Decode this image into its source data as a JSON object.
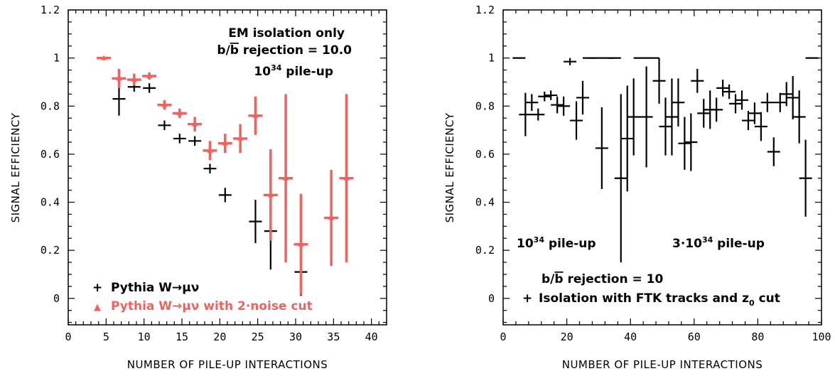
{
  "chart_data": [
    {
      "type": "scatter",
      "xlabel": "NUMBER OF PILE-UP INTERACTIONS",
      "ylabel": "SIGNAL EFFICIENCY",
      "xlim": [
        0,
        42
      ],
      "ylim": [
        -0.11,
        1.2
      ],
      "xticks": [
        "0",
        "5",
        "10",
        "15",
        "20",
        "25",
        "30",
        "35",
        "40"
      ],
      "yticks": [
        "0",
        "0.2",
        "0.4",
        "0.6",
        "0.8",
        "1",
        "1.2"
      ],
      "annotations": {
        "line1": "EM isolation only",
        "line2_prefix": "b/",
        "line2_bar": "b",
        "line2_suffix": " rejection = 10.0",
        "line3_base": "10",
        "line3_sup": "34",
        "line3_suffix": " pile-up"
      },
      "legend": {
        "placement": "bottom-left",
        "entries": [
          {
            "marker": "+",
            "label": "Pythia W→μν",
            "color": "#000000"
          },
          {
            "marker": "▲",
            "label": "Pythia W→μν with 2·noise cut",
            "color": "#f0625f"
          }
        ]
      },
      "series": [
        {
          "name": "Pythia W→μν",
          "color": "#000000",
          "points": [
            {
              "x": 6.7,
              "y": 0.83,
              "err": 0.07
            },
            {
              "x": 8.7,
              "y": 0.88,
              "err": 0.02
            },
            {
              "x": 10.7,
              "y": 0.875,
              "err": 0.02
            },
            {
              "x": 12.7,
              "y": 0.72,
              "err": 0.02
            },
            {
              "x": 14.7,
              "y": 0.665,
              "err": 0.02
            },
            {
              "x": 16.7,
              "y": 0.655,
              "err": 0.02
            },
            {
              "x": 18.7,
              "y": 0.54,
              "err": 0.02
            },
            {
              "x": 20.7,
              "y": 0.43,
              "err": 0.03
            },
            {
              "x": 24.7,
              "y": 0.32,
              "err": 0.09
            },
            {
              "x": 26.7,
              "y": 0.28,
              "err": 0.16
            },
            {
              "x": 30.7,
              "y": 0.11,
              "err": 0.1
            }
          ]
        },
        {
          "name": "Pythia W→μν with 2·noise cut",
          "color": "#f0625f",
          "points": [
            {
              "x": 4.7,
              "y": 1.0,
              "err": 0.005
            },
            {
              "x": 6.7,
              "y": 0.915,
              "err": 0.04
            },
            {
              "x": 8.7,
              "y": 0.91,
              "err": 0.025
            },
            {
              "x": 10.7,
              "y": 0.925,
              "err": 0.015
            },
            {
              "x": 12.7,
              "y": 0.805,
              "err": 0.02
            },
            {
              "x": 14.7,
              "y": 0.77,
              "err": 0.02
            },
            {
              "x": 16.7,
              "y": 0.725,
              "err": 0.03
            },
            {
              "x": 18.7,
              "y": 0.615,
              "err": 0.04
            },
            {
              "x": 20.7,
              "y": 0.645,
              "err": 0.04
            },
            {
              "x": 22.7,
              "y": 0.665,
              "err": 0.06
            },
            {
              "x": 24.7,
              "y": 0.76,
              "err": 0.08
            },
            {
              "x": 26.7,
              "y": 0.43,
              "err": 0.19
            },
            {
              "x": 28.7,
              "y": 0.5,
              "err": 0.35
            },
            {
              "x": 30.7,
              "y": 0.225,
              "err": 0.21
            },
            {
              "x": 34.7,
              "y": 0.335,
              "err": 0.2
            },
            {
              "x": 36.7,
              "y": 0.5,
              "err": 0.35
            }
          ]
        }
      ]
    },
    {
      "type": "scatter",
      "xlabel": "NUMBER OF PILE-UP INTERACTIONS",
      "ylabel": "SIGNAL EFFICIENCY",
      "xlim": [
        0,
        100
      ],
      "ylim": [
        -0.11,
        1.2
      ],
      "xticks": [
        "0",
        "20",
        "40",
        "60",
        "80",
        "100"
      ],
      "yticks": [
        "0",
        "0.2",
        "0.4",
        "0.6",
        "0.8",
        "1",
        "1.2"
      ],
      "annotations": {
        "left_base": "10",
        "left_sup": "34",
        "left_suffix": " pile-up",
        "right_prefix": "3·10",
        "right_sup": "34",
        "right_suffix": " pile-up",
        "rejection_prefix": "b/",
        "rejection_bar": "b",
        "rejection_suffix": " rejection = 10",
        "legend_marker": "+",
        "legend_label": "Isolation with FTK tracks and z",
        "legend_sub": "0",
        "legend_suffix": " cut"
      },
      "series": [
        {
          "name": "Isolation with FTK tracks and z0 cut",
          "color": "#000000",
          "points": [
            {
              "x": 5,
              "y": 1.0,
              "err": 0
            },
            {
              "x": 7,
              "y": 0.765,
              "err": 0.09
            },
            {
              "x": 9,
              "y": 0.815,
              "err": 0.035
            },
            {
              "x": 11,
              "y": 0.765,
              "err": 0.025
            },
            {
              "x": 13,
              "y": 0.84,
              "err": 0.02
            },
            {
              "x": 15,
              "y": 0.845,
              "err": 0.02
            },
            {
              "x": 17,
              "y": 0.805,
              "err": 0.035
            },
            {
              "x": 19,
              "y": 0.8,
              "err": 0.04
            },
            {
              "x": 21,
              "y": 0.985,
              "err": 0.015
            },
            {
              "x": 23,
              "y": 0.74,
              "err": 0.08
            },
            {
              "x": 25,
              "y": 0.835,
              "err": 0.07
            },
            {
              "x": 27,
              "y": 1.0,
              "err": 0
            },
            {
              "x": 29,
              "y": 1.0,
              "err": 0
            },
            {
              "x": 31,
              "y": 0.625,
              "err": 0.17
            },
            {
              "x": 33,
              "y": 1.0,
              "err": 0
            },
            {
              "x": 35,
              "y": 1.0,
              "err": 0
            },
            {
              "x": 37,
              "y": 0.5,
              "err": 0.35
            },
            {
              "x": 39,
              "y": 0.665,
              "err": 0.22
            },
            {
              "x": 41,
              "y": 0.755,
              "err": 0.16
            },
            {
              "x": 43,
              "y": 1.0,
              "err": 0
            },
            {
              "x": 45,
              "y": 0.755,
              "err": 0.21
            },
            {
              "x": 47,
              "y": 1.0,
              "err": 0
            },
            {
              "x": 49,
              "y": 0.905,
              "err": 0.095
            },
            {
              "x": 51,
              "y": 0.715,
              "err": 0.12
            },
            {
              "x": 53,
              "y": 0.755,
              "err": 0.16
            },
            {
              "x": 55,
              "y": 0.815,
              "err": 0.1
            },
            {
              "x": 57,
              "y": 0.645,
              "err": 0.11
            },
            {
              "x": 59,
              "y": 0.65,
              "err": 0.12
            },
            {
              "x": 61,
              "y": 0.905,
              "err": 0.05
            },
            {
              "x": 63,
              "y": 0.77,
              "err": 0.06
            },
            {
              "x": 65,
              "y": 0.785,
              "err": 0.08
            },
            {
              "x": 67,
              "y": 0.785,
              "err": 0.05
            },
            {
              "x": 69,
              "y": 0.875,
              "err": 0.035
            },
            {
              "x": 71,
              "y": 0.86,
              "err": 0.03
            },
            {
              "x": 73,
              "y": 0.81,
              "err": 0.04
            },
            {
              "x": 75,
              "y": 0.825,
              "err": 0.04
            },
            {
              "x": 77,
              "y": 0.74,
              "err": 0.04
            },
            {
              "x": 79,
              "y": 0.77,
              "err": 0.045
            },
            {
              "x": 81,
              "y": 0.715,
              "err": 0.06
            },
            {
              "x": 83,
              "y": 0.815,
              "err": 0.04
            },
            {
              "x": 85,
              "y": 0.61,
              "err": 0.06
            },
            {
              "x": 87,
              "y": 0.815,
              "err": 0.04
            },
            {
              "x": 89,
              "y": 0.85,
              "err": 0.05
            },
            {
              "x": 91,
              "y": 0.835,
              "err": 0.09
            },
            {
              "x": 93,
              "y": 0.755,
              "err": 0.11
            },
            {
              "x": 95,
              "y": 0.5,
              "err": 0.16
            },
            {
              "x": 97,
              "y": 1.0,
              "err": 0
            }
          ]
        }
      ]
    }
  ]
}
